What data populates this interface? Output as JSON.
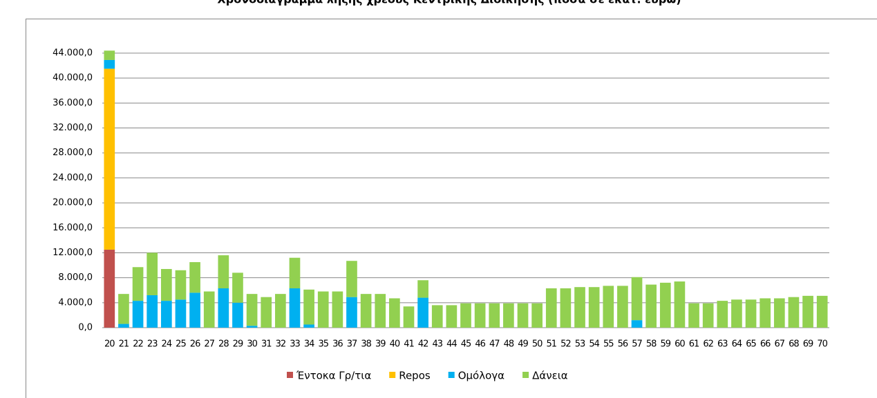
{
  "chart_data": {
    "type": "stacked_bar",
    "title": "Χρονοδιάγραμμα λήξης χρέους Κεντρικής Διοίκησης (ποσά σε εκατ. ευρώ)",
    "categories": [
      "20",
      "21",
      "22",
      "23",
      "24",
      "25",
      "26",
      "27",
      "28",
      "29",
      "30",
      "31",
      "32",
      "33",
      "34",
      "35",
      "36",
      "37",
      "38",
      "39",
      "40",
      "41",
      "42",
      "43",
      "44",
      "45",
      "46",
      "47",
      "48",
      "49",
      "50",
      "51",
      "52",
      "53",
      "54",
      "55",
      "56",
      "57",
      "58",
      "59",
      "60",
      "61",
      "62",
      "63",
      "64",
      "65",
      "66",
      "67",
      "68",
      "69",
      "70"
    ],
    "series": [
      {
        "name": "Έντοκα Γρ/τια",
        "color": "#c0504d",
        "values": [
          12500,
          0,
          0,
          0,
          0,
          0,
          0,
          0,
          0,
          0,
          0,
          0,
          0,
          0,
          0,
          0,
          0,
          0,
          0,
          0,
          0,
          0,
          0,
          0,
          0,
          0,
          0,
          0,
          0,
          0,
          0,
          0,
          0,
          0,
          0,
          0,
          0,
          0,
          0,
          0,
          0,
          0,
          0,
          0,
          0,
          0,
          0,
          0,
          0,
          0,
          0
        ]
      },
      {
        "name": "Repos",
        "color": "#ffc000",
        "values": [
          29000,
          0,
          0,
          0,
          0,
          0,
          0,
          0,
          0,
          0,
          0,
          0,
          0,
          0,
          0,
          0,
          0,
          0,
          0,
          0,
          0,
          0,
          0,
          0,
          0,
          0,
          0,
          0,
          0,
          0,
          0,
          0,
          0,
          0,
          0,
          0,
          0,
          0,
          0,
          0,
          0,
          0,
          0,
          0,
          0,
          0,
          0,
          0,
          0,
          0,
          0
        ]
      },
      {
        "name": "Ομόλογα",
        "color": "#00b0f0",
        "values": [
          1400,
          600,
          4300,
          5200,
          4300,
          4500,
          5600,
          0,
          6300,
          4000,
          300,
          0,
          0,
          6300,
          500,
          0,
          0,
          4900,
          0,
          0,
          0,
          0,
          4800,
          0,
          0,
          0,
          0,
          0,
          0,
          0,
          0,
          0,
          0,
          0,
          0,
          0,
          0,
          1200,
          0,
          0,
          0,
          0,
          0,
          0,
          0,
          0,
          0,
          0,
          0,
          0,
          0
        ]
      },
      {
        "name": "Δάνεια",
        "color": "#92d050",
        "values": [
          1500,
          4800,
          5400,
          6800,
          5100,
          4700,
          4900,
          5800,
          5300,
          4800,
          5100,
          4900,
          5400,
          4900,
          5600,
          5800,
          5800,
          5800,
          5400,
          5400,
          4700,
          3400,
          2800,
          3600,
          3600,
          3900,
          3900,
          3900,
          3900,
          3900,
          3900,
          6300,
          6300,
          6500,
          6500,
          6700,
          6700,
          6900,
          6900,
          7200,
          7400,
          3900,
          3900,
          4300,
          4500,
          4500,
          4700,
          4700,
          4900,
          5100,
          5100
        ]
      }
    ],
    "ylim": [
      0,
      44000
    ],
    "yticks": [
      {
        "value": 0,
        "label": "0,0"
      },
      {
        "value": 4000,
        "label": "4.000,0"
      },
      {
        "value": 8000,
        "label": "8.000,0"
      },
      {
        "value": 12000,
        "label": "12.000,0"
      },
      {
        "value": 16000,
        "label": "16.000,0"
      },
      {
        "value": 20000,
        "label": "20.000,0"
      },
      {
        "value": 24000,
        "label": "24.000,0"
      },
      {
        "value": 28000,
        "label": "28.000,0"
      },
      {
        "value": 32000,
        "label": "32.000,0"
      },
      {
        "value": 36000,
        "label": "36.000,0"
      },
      {
        "value": 40000,
        "label": "40.000,0"
      },
      {
        "value": 44000,
        "label": "44.000,0"
      }
    ],
    "grid": true,
    "legend": "bottom"
  }
}
